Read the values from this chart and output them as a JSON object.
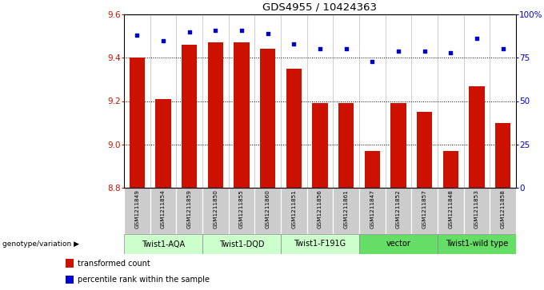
{
  "title": "GDS4955 / 10424363",
  "samples": [
    "GSM1211849",
    "GSM1211854",
    "GSM1211859",
    "GSM1211850",
    "GSM1211855",
    "GSM1211860",
    "GSM1211851",
    "GSM1211856",
    "GSM1211861",
    "GSM1211847",
    "GSM1211852",
    "GSM1211857",
    "GSM1211848",
    "GSM1211853",
    "GSM1211858"
  ],
  "bar_values": [
    9.4,
    9.21,
    9.46,
    9.47,
    9.47,
    9.44,
    9.35,
    9.19,
    9.19,
    8.97,
    9.19,
    9.15,
    8.97,
    9.27,
    9.1
  ],
  "percentile_values": [
    88,
    85,
    90,
    91,
    91,
    89,
    83,
    80,
    80,
    73,
    79,
    79,
    78,
    86,
    80
  ],
  "ylim_left": [
    8.8,
    9.6
  ],
  "ylim_right": [
    0,
    100
  ],
  "yticks_left": [
    8.8,
    9.0,
    9.2,
    9.4,
    9.6
  ],
  "yticks_right": [
    0,
    25,
    50,
    75,
    100
  ],
  "ytick_right_labels": [
    "0",
    "25",
    "50",
    "75",
    "100%"
  ],
  "bar_color": "#cc1100",
  "dot_color": "#0000cc",
  "groups": [
    {
      "label": "Twist1-AQA",
      "start": 0,
      "end": 3,
      "color": "#ccffcc"
    },
    {
      "label": "Twist1-DQD",
      "start": 3,
      "end": 6,
      "color": "#ccffcc"
    },
    {
      "label": "Twist1-F191G",
      "start": 6,
      "end": 9,
      "color": "#ccffcc"
    },
    {
      "label": "vector",
      "start": 9,
      "end": 12,
      "color": "#66dd66"
    },
    {
      "label": "Twist1-wild type",
      "start": 12,
      "end": 15,
      "color": "#66dd66"
    }
  ],
  "legend_items": [
    {
      "label": "transformed count",
      "color": "#cc1100"
    },
    {
      "label": "percentile rank within the sample",
      "color": "#0000cc"
    }
  ],
  "bg_color": "#ffffff",
  "gray_bg": "#cccccc"
}
